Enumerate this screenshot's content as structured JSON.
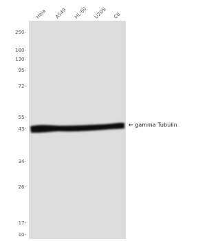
{
  "lanes": [
    "Hela",
    "A549",
    "HL-60",
    "U2OS",
    "C6"
  ],
  "markers": [
    "250-",
    "180-",
    "130-",
    "95-",
    "72-",
    "55-",
    "43-",
    "34-",
    "26-",
    "17-",
    "10-"
  ],
  "band_label": "← gamma Tubulin"
}
